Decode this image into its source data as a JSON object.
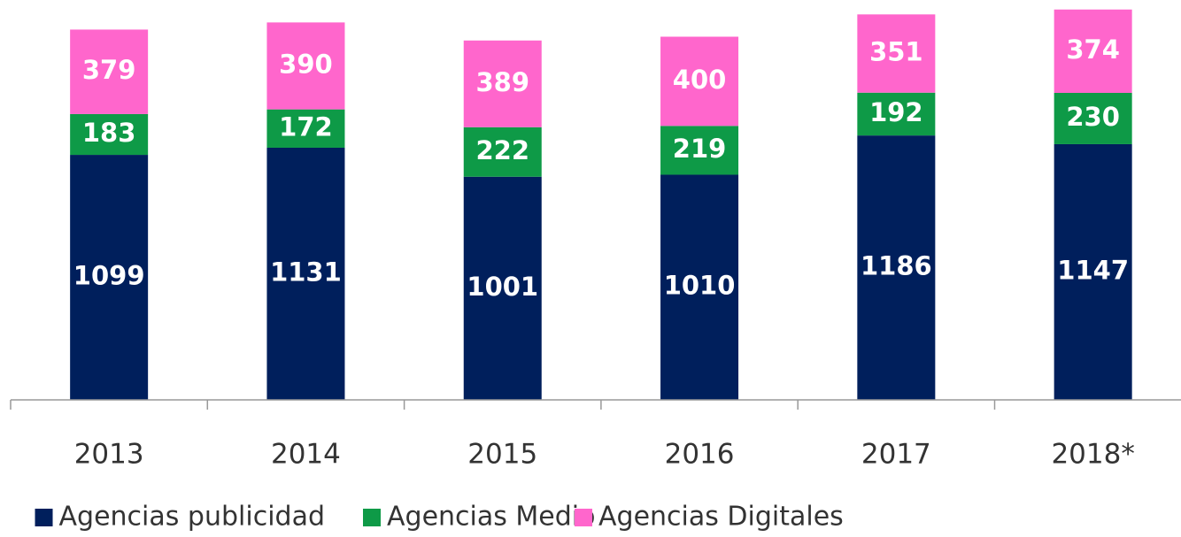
{
  "chart_data": {
    "type": "stacked-bar",
    "categories": [
      "2013",
      "2014",
      "2015",
      "2016",
      "2017",
      "2018*"
    ],
    "series": [
      {
        "name": "Agencias publicidad",
        "color": "#001f5c",
        "values": [
          1099,
          1131,
          1001,
          1010,
          1186,
          1147
        ]
      },
      {
        "name": "Agencias Medio",
        "color": "#0e9a47",
        "values": [
          183,
          172,
          222,
          219,
          192,
          230
        ]
      },
      {
        "name": "Agencias Digitales",
        "color": "#ff66cc",
        "values": [
          379,
          390,
          389,
          400,
          351,
          374
        ]
      }
    ],
    "ylim": [
      0,
      1800
    ]
  }
}
